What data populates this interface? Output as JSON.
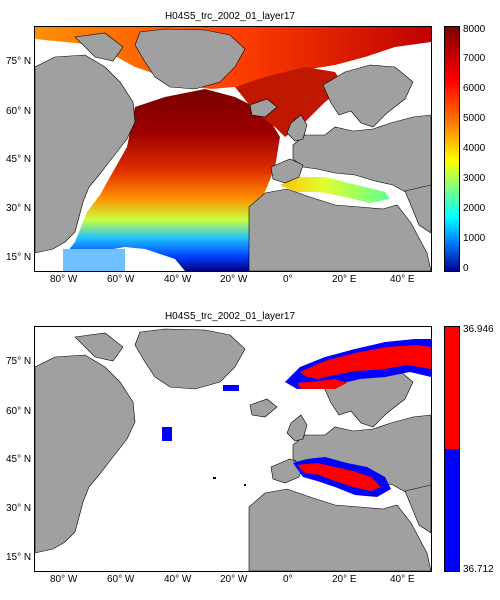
{
  "panels": [
    {
      "title": "H04S5_trc_2002_01_layer17",
      "lat_ticks": [
        "75° N",
        "60° N",
        "45° N",
        "30° N",
        "15° N"
      ],
      "lon_ticks": [
        "80° W",
        "60° W",
        "40° W",
        "20° W",
        "0°",
        "20° E",
        "40° E"
      ],
      "colorbar": {
        "type": "continuous-jet",
        "ticks": [
          "8000",
          "7000",
          "6000",
          "5000",
          "4000",
          "3000",
          "2000",
          "1000",
          "0"
        ]
      }
    },
    {
      "title": "H04S5_trc_2002_01_layer17",
      "lat_ticks": [
        "75° N",
        "60° N",
        "45° N",
        "30° N",
        "15° N"
      ],
      "lon_ticks": [
        "80° W",
        "60° W",
        "40° W",
        "20° W",
        "0°",
        "20° E",
        "40° E"
      ],
      "colorbar": {
        "type": "two-class",
        "ticks": [
          "36.946",
          "36.712"
        ],
        "colors": [
          "#ff0000",
          "#0000ff"
        ]
      }
    }
  ],
  "colors": {
    "land": "#a0a0a0",
    "ocean_no_data": "#ffffff",
    "coast": "#000000"
  }
}
